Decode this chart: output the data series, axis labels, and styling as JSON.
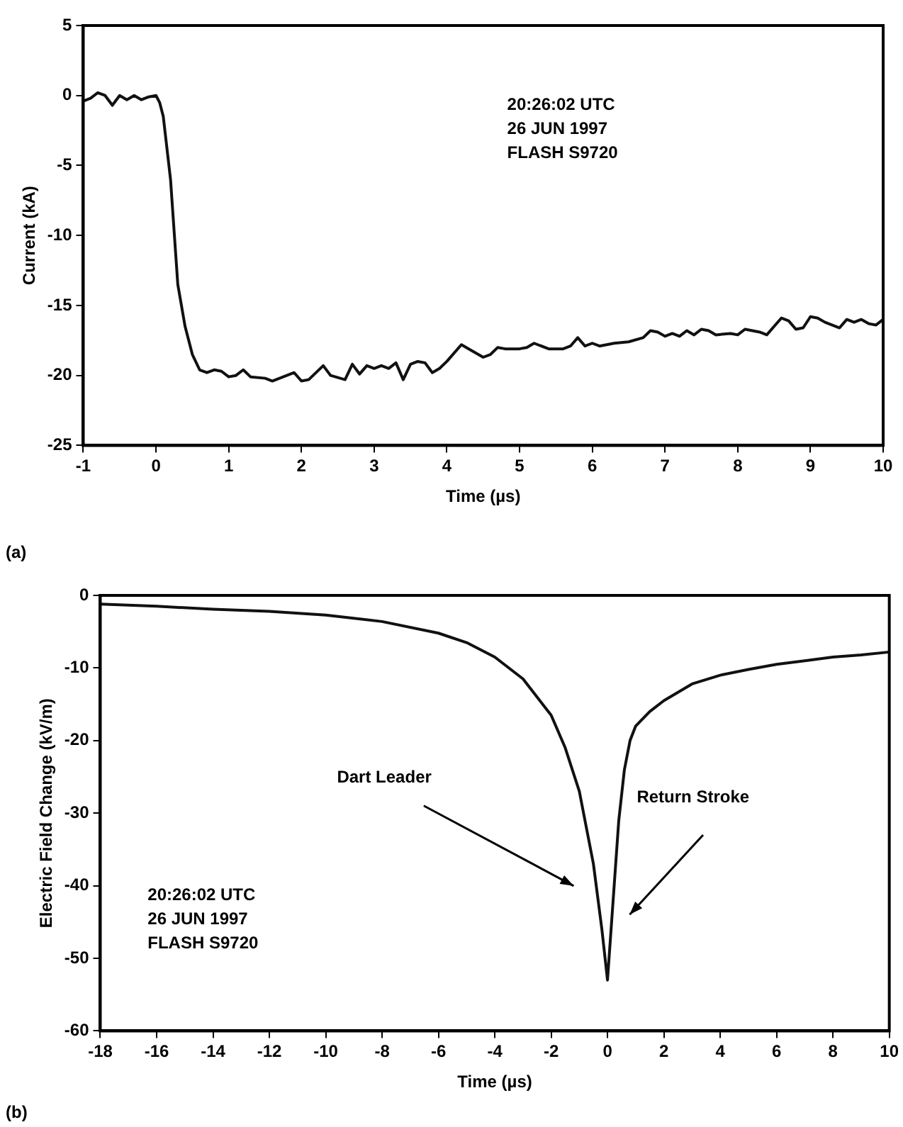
{
  "chart_data": [
    {
      "type": "line",
      "xlabel": "Time (µs)",
      "ylabel": "Current (kA)",
      "xlim": [
        -1,
        10
      ],
      "xticks": [
        -1,
        0,
        1,
        2,
        3,
        4,
        5,
        6,
        7,
        8,
        9,
        10
      ],
      "ylim": [
        -25,
        5
      ],
      "yticks": [
        -25,
        -20,
        -15,
        -10,
        -5,
        0,
        5
      ],
      "grid": false,
      "legend": false,
      "marker": "none",
      "line_style": "solid",
      "annotations": [
        "20:26:02 UTC\n26 JUN 1997\nFLASH S9720",
        "(a)"
      ],
      "series": [
        {
          "color": "#111111",
          "x": [
            -1,
            -0.9,
            -0.8,
            -0.7,
            -0.6,
            -0.5,
            -0.4,
            -0.3,
            -0.2,
            -0.1,
            0,
            0.05,
            0.1,
            0.2,
            0.3,
            0.4,
            0.5,
            0.6,
            0.7,
            0.8,
            0.9,
            1.0,
            1.1,
            1.2,
            1.3,
            1.5,
            1.6,
            1.8,
            1.9,
            2.0,
            2.1,
            2.3,
            2.4,
            2.6,
            2.7,
            2.8,
            2.9,
            3.0,
            3.1,
            3.2,
            3.3,
            3.4,
            3.5,
            3.6,
            3.7,
            3.8,
            3.9,
            4.0,
            4.2,
            4.3,
            4.5,
            4.6,
            4.7,
            4.8,
            5.0,
            5.1,
            5.2,
            5.4,
            5.6,
            5.7,
            5.8,
            5.9,
            6.0,
            6.1,
            6.3,
            6.5,
            6.7,
            6.8,
            6.9,
            7.0,
            7.1,
            7.2,
            7.3,
            7.4,
            7.5,
            7.6,
            7.7,
            7.9,
            8.0,
            8.1,
            8.2,
            8.3,
            8.4,
            8.5,
            8.6,
            8.7,
            8.8,
            8.9,
            9.0,
            9.1,
            9.2,
            9.4,
            9.5,
            9.6,
            9.7,
            9.8,
            9.9,
            10
          ],
          "values": [
            -0.4,
            -0.2,
            0.2,
            0.0,
            -0.7,
            0.0,
            -0.3,
            0.0,
            -0.3,
            -0.1,
            0,
            -0.5,
            -1.5,
            -6,
            -13.5,
            -16.5,
            -18.5,
            -19.6,
            -19.8,
            -19.6,
            -19.7,
            -20.1,
            -20.0,
            -19.6,
            -20.1,
            -20.2,
            -20.4,
            -20.0,
            -19.8,
            -20.4,
            -20.3,
            -19.3,
            -20.0,
            -20.3,
            -19.2,
            -19.9,
            -19.3,
            -19.5,
            -19.3,
            -19.5,
            -19.1,
            -20.3,
            -19.2,
            -19.0,
            -19.1,
            -19.8,
            -19.5,
            -19.0,
            -17.8,
            -18.1,
            -18.7,
            -18.5,
            -18.0,
            -18.1,
            -18.1,
            -18.0,
            -17.7,
            -18.1,
            -18.1,
            -17.9,
            -17.3,
            -17.9,
            -17.7,
            -17.9,
            -17.7,
            -17.6,
            -17.3,
            -16.8,
            -16.9,
            -17.2,
            -17.0,
            -17.2,
            -16.8,
            -17.1,
            -16.7,
            -16.8,
            -17.1,
            -17.0,
            -17.1,
            -16.7,
            -16.8,
            -16.9,
            -17.1,
            -16.5,
            -15.9,
            -16.1,
            -16.7,
            -16.6,
            -15.8,
            -15.9,
            -16.2,
            -16.6,
            -16.0,
            -16.2,
            -16.0,
            -16.3,
            -16.4,
            -16.0
          ]
        }
      ]
    },
    {
      "type": "line",
      "xlabel": "Time (µs)",
      "ylabel": "Electric Field Change (kV/m)",
      "xlim": [
        -18,
        10
      ],
      "xticks": [
        -18,
        -16,
        -14,
        -12,
        -10,
        -8,
        -6,
        -4,
        -2,
        0,
        2,
        4,
        6,
        8,
        10
      ],
      "ylim": [
        -60,
        0
      ],
      "yticks": [
        -60,
        -50,
        -40,
        -30,
        -20,
        -10,
        0
      ],
      "grid": false,
      "legend": false,
      "marker": "none",
      "line_style": "solid",
      "annotations": [
        "Dart Leader",
        "Return Stroke",
        "20:26:02 UTC\n26 JUN 1997\nFLASH S9720",
        "(b)"
      ],
      "series": [
        {
          "color": "#111111",
          "x": [
            -18,
            -16,
            -14,
            -12,
            -10,
            -8,
            -6,
            -5,
            -4,
            -3,
            -2,
            -1.5,
            -1,
            -0.5,
            -0.2,
            0,
            0.2,
            0.4,
            0.6,
            0.8,
            1,
            1.5,
            2,
            3,
            4,
            5,
            6,
            7,
            8,
            9,
            10
          ],
          "values": [
            -1.2,
            -1.5,
            -1.9,
            -2.2,
            -2.7,
            -3.6,
            -5.2,
            -6.5,
            -8.5,
            -11.5,
            -16.5,
            -21,
            -27,
            -37,
            -46,
            -53,
            -42,
            -31,
            -24,
            -20,
            -18,
            -16,
            -14.5,
            -12.2,
            -11,
            -10.2,
            -9.5,
            -9,
            -8.5,
            -8.2,
            -7.8
          ]
        }
      ]
    }
  ]
}
